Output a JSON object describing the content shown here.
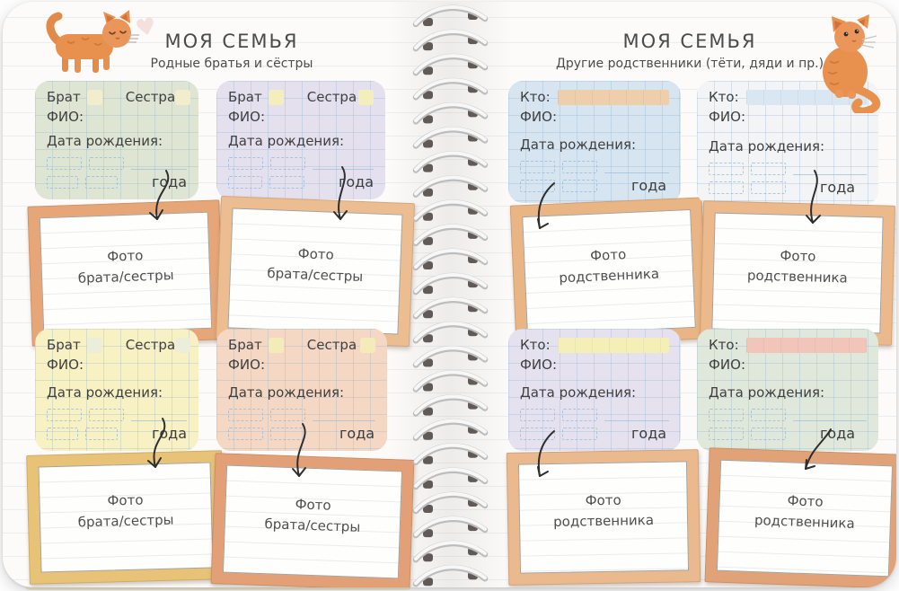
{
  "left_page": {
    "title": "МОЯ СЕМЬЯ",
    "subtitle": "Родные братья и сёстры",
    "photo_caption": {
      "line1": "Фото",
      "line2": "брата/сестры"
    }
  },
  "right_page": {
    "title": "МОЯ СЕМЬЯ",
    "subtitle": "Другие родственники (тёти, дяди и пр.)",
    "photo_caption": {
      "line1": "Фото",
      "line2": "родственника"
    }
  },
  "fields": {
    "brother": "Брат",
    "sister": "Сестра",
    "who": "Кто:",
    "full_name": "ФИО:",
    "birth_date": "Дата рождения:",
    "years": "года"
  },
  "palette": {
    "frame_orange": "#e8a87c",
    "frame_gold": "#e8c377",
    "card_green": "#dfe5d3",
    "card_lavender": "#e4e0ee",
    "card_yellow": "#f8f1c4",
    "card_peach": "#f5d8c3",
    "card_blue": "#d7e5f0",
    "card_white": "#f2f4f6",
    "cat_orange": "#e8914f",
    "ink": "#3f3f3f"
  }
}
